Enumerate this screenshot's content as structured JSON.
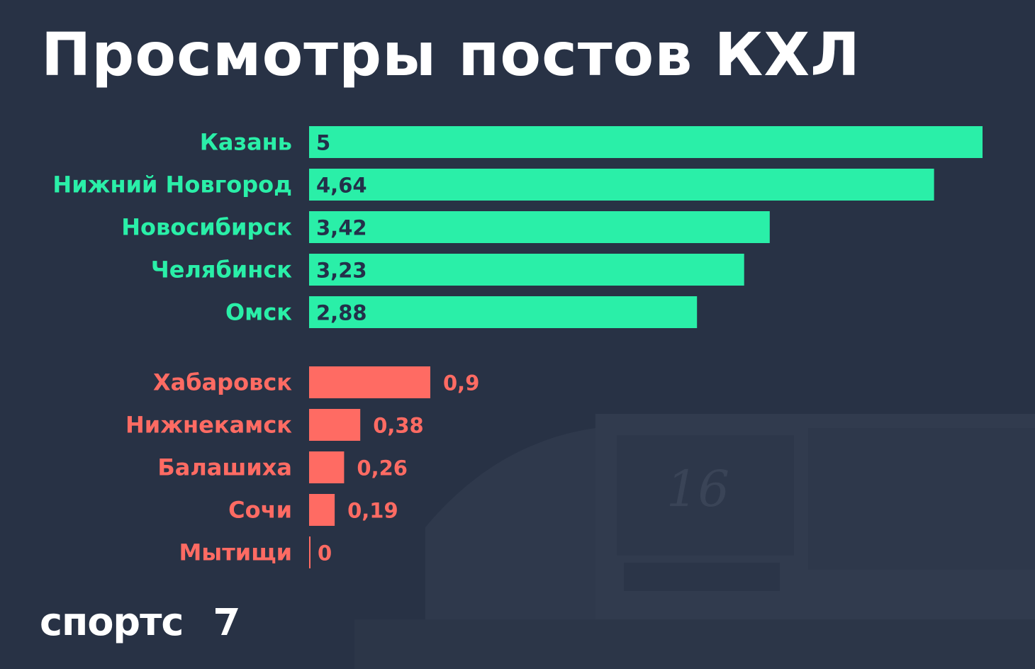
{
  "title": "Просмотры постов КХЛ",
  "logo": "спортс",
  "colors": {
    "background": "#283245",
    "top": "#2aefa8",
    "bottom": "#ff6b63",
    "top_value_text": "#23304a",
    "title": "#ffffff"
  },
  "chart_data": {
    "type": "bar",
    "orientation": "horizontal",
    "title": "Просмотры постов КХЛ",
    "xlim": [
      0,
      5
    ],
    "groups": [
      {
        "group": "top",
        "categories": [
          "Казань",
          "Нижний Новгород",
          "Новосибирск",
          "Челябинск",
          "Омск"
        ],
        "values": [
          5,
          4.64,
          3.42,
          3.23,
          2.88
        ],
        "labels": [
          "5",
          "4,64",
          "3,42",
          "3,23",
          "2,88"
        ]
      },
      {
        "group": "bottom",
        "categories": [
          "Хабаровск",
          "Нижнекамск",
          "Балашиха",
          "Сочи",
          "Мытищи"
        ],
        "values": [
          0.9,
          0.38,
          0.26,
          0.19,
          0
        ],
        "labels": [
          "0,9",
          "0,38",
          "0,26",
          "0,19",
          "0"
        ]
      }
    ]
  }
}
